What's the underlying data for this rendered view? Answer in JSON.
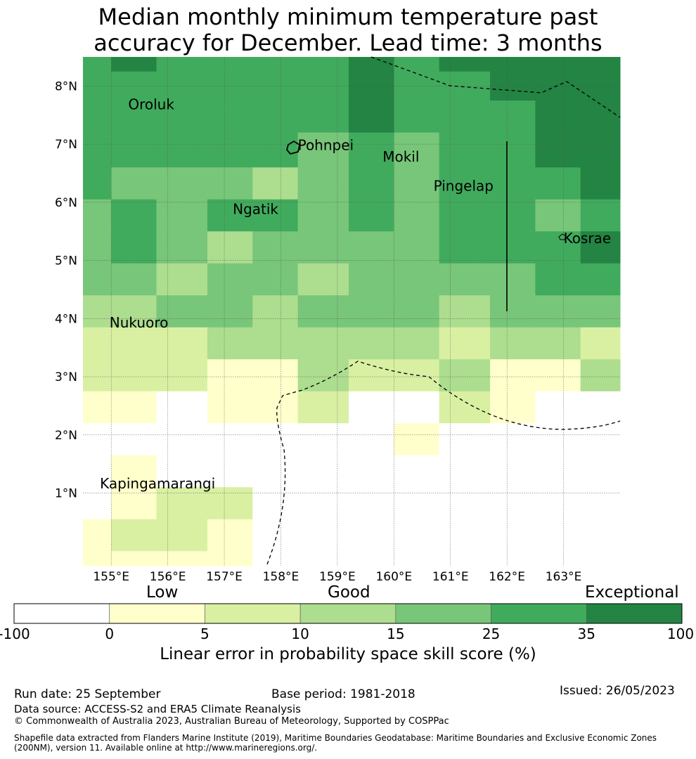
{
  "title_line1": "Median monthly minimum temperature past",
  "title_line2": "accuracy for December. Lead time: 3 months",
  "map": {
    "lon_min": 154.5,
    "lon_max": 164.0,
    "lat_min": -0.25,
    "lat_max": 8.5,
    "lat_ticks": [
      {
        "value": 1,
        "label": "1°N"
      },
      {
        "value": 2,
        "label": "2°N"
      },
      {
        "value": 3,
        "label": "3°N"
      },
      {
        "value": 4,
        "label": "4°N"
      },
      {
        "value": 5,
        "label": "5°N"
      },
      {
        "value": 6,
        "label": "6°N"
      },
      {
        "value": 7,
        "label": "7°N"
      },
      {
        "value": 8,
        "label": "8°N"
      }
    ],
    "lon_ticks": [
      {
        "value": 155,
        "label": "155°E"
      },
      {
        "value": 156,
        "label": "156°E"
      },
      {
        "value": 157,
        "label": "157°E"
      },
      {
        "value": 158,
        "label": "158°E"
      },
      {
        "value": 159,
        "label": "159°E"
      },
      {
        "value": 160,
        "label": "160°E"
      },
      {
        "value": 161,
        "label": "161°E"
      },
      {
        "value": 162,
        "label": "162°E"
      },
      {
        "value": 163,
        "label": "163°E"
      }
    ],
    "grid_cell_lon": [
      "154.5-155.0",
      "155.0-155.8",
      "155.8-156.7",
      "156.7-157.5",
      "157.5-158.3",
      "158.3-159.2",
      "159.2-160.0",
      "160.0-160.8",
      "160.8-161.7",
      "161.7-162.5",
      "162.5-163.3",
      "163.3-164.0"
    ],
    "grid_cell_lat": [
      "8.25-8.5",
      "7.75-8.25",
      "7.2-7.75",
      "6.6-7.2",
      "6.05-6.6",
      "5.5-6.05",
      "4.95-5.5",
      "4.4-4.95",
      "3.85-4.4",
      "3.3-3.85",
      "2.75-3.3",
      "2.2-2.75",
      "1.65-2.2",
      "1.1-1.65",
      "0.55-1.1",
      "0.0-0.55",
      "-0.25-0.0"
    ],
    "grid_category_index": [
      [
        5,
        6,
        5,
        5,
        5,
        5,
        6,
        5,
        6,
        6,
        6,
        6
      ],
      [
        5,
        5,
        5,
        5,
        5,
        5,
        6,
        5,
        5,
        6,
        6,
        6
      ],
      [
        5,
        5,
        5,
        5,
        5,
        5,
        6,
        5,
        5,
        5,
        6,
        6
      ],
      [
        5,
        5,
        5,
        5,
        5,
        4,
        5,
        4,
        5,
        5,
        6,
        6
      ],
      [
        5,
        4,
        4,
        4,
        3,
        4,
        5,
        4,
        5,
        5,
        5,
        6
      ],
      [
        4,
        5,
        4,
        5,
        5,
        4,
        5,
        4,
        5,
        5,
        4,
        5
      ],
      [
        4,
        5,
        4,
        3,
        4,
        4,
        4,
        4,
        5,
        5,
        5,
        6
      ],
      [
        4,
        4,
        3,
        4,
        4,
        3,
        4,
        4,
        4,
        4,
        5,
        5
      ],
      [
        3,
        3,
        4,
        4,
        3,
        4,
        4,
        4,
        3,
        4,
        4,
        4
      ],
      [
        2,
        2,
        2,
        3,
        3,
        3,
        3,
        3,
        2,
        3,
        3,
        2
      ],
      [
        2,
        2,
        2,
        1,
        1,
        3,
        2,
        2,
        3,
        1,
        1,
        3
      ],
      [
        1,
        1,
        0,
        1,
        1,
        2,
        0,
        0,
        2,
        1,
        0,
        0
      ],
      [
        0,
        0,
        0,
        0,
        0,
        0,
        0,
        1,
        0,
        0,
        0,
        0
      ],
      [
        0,
        1,
        0,
        0,
        0,
        0,
        0,
        0,
        0,
        0,
        0,
        0
      ],
      [
        0,
        1,
        2,
        2,
        0,
        0,
        0,
        0,
        0,
        0,
        0,
        0
      ],
      [
        1,
        2,
        2,
        1,
        0,
        0,
        0,
        0,
        0,
        0,
        0,
        0
      ],
      [
        1,
        1,
        1,
        1,
        0,
        0,
        0,
        0,
        0,
        0,
        0,
        0
      ]
    ],
    "places": [
      {
        "name": "Oroluk",
        "lon": 155.3,
        "lat": 7.6
      },
      {
        "name": "Pohnpei",
        "lon": 158.3,
        "lat": 6.9
      },
      {
        "name": "Mokil",
        "lon": 159.8,
        "lat": 6.7
      },
      {
        "name": "Pingelap",
        "lon": 160.7,
        "lat": 6.2
      },
      {
        "name": "Ngatik",
        "lon": 157.15,
        "lat": 5.8
      },
      {
        "name": "Kosrae",
        "lon": 163.0,
        "lat": 5.3
      },
      {
        "name": "Nukuoro",
        "lon": 154.97,
        "lat": 3.85
      },
      {
        "name": "Kapingamarangi",
        "lon": 154.8,
        "lat": 1.08
      }
    ],
    "boundary_lines": "EEZ boundaries (dashed)"
  },
  "colorbar": {
    "categories": [
      {
        "label": "Low"
      },
      {
        "label": "Good"
      },
      {
        "label": "Exceptional"
      }
    ],
    "bins": [
      {
        "from": -100,
        "to": 0,
        "color": "#ffffff"
      },
      {
        "from": 0,
        "to": 5,
        "color": "#ffffcc"
      },
      {
        "from": 5,
        "to": 10,
        "color": "#d9f0a3"
      },
      {
        "from": 10,
        "to": 15,
        "color": "#addd8e"
      },
      {
        "from": 15,
        "to": 25,
        "color": "#78c679"
      },
      {
        "from": 25,
        "to": 35,
        "color": "#41ab5d"
      },
      {
        "from": 35,
        "to": 100,
        "color": "#238443"
      }
    ],
    "ticks": [
      "-100",
      "0",
      "5",
      "10",
      "15",
      "25",
      "35",
      "100"
    ],
    "label": "Linear error in probability space skill score (%)"
  },
  "footer": {
    "run_date": "Run date: 25 September",
    "base_period": "Base period: 1981-2018",
    "issued": "Issued: 26/05/2023",
    "data_source": "Data source: ACCESS-S2 and ERA5 Climate Reanalysis",
    "copyright": "© Commonwealth of Australia 2023, Australian Bureau of Meteorology, Supported by COSPPac",
    "shapefile": "Shapefile data extracted from Flanders Marine Institute (2019), Maritime Boundaries Geodatabase: Maritime Boundaries and Exclusive Economic Zones (200NM), version 11. Available online at http://www.marineregions.org/."
  }
}
